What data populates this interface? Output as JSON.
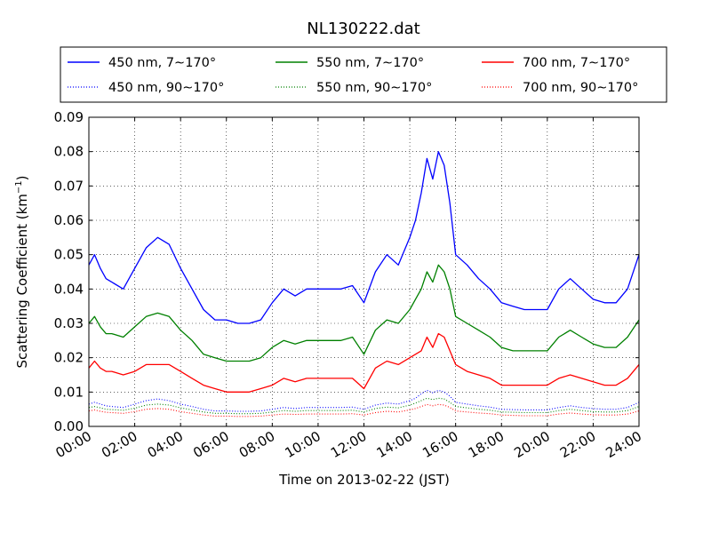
{
  "chart_data": {
    "type": "line",
    "title": "NL130222.dat",
    "xlabel": "Time on 2013-02-22 (JST)",
    "ylabel": "Scattering Coefficient (km",
    "ylabel_superscript": "−1",
    "ylabel_suffix": ")",
    "xlim": [
      "00:00",
      "24:00"
    ],
    "ylim": [
      0.0,
      0.09
    ],
    "grid": true,
    "legend_position": "top",
    "x_ticks": [
      "00:00",
      "02:00",
      "04:00",
      "06:00",
      "08:00",
      "10:00",
      "12:00",
      "14:00",
      "16:00",
      "18:00",
      "20:00",
      "22:00",
      "24:00"
    ],
    "y_ticks": [
      "0.00",
      "0.01",
      "0.02",
      "0.03",
      "0.04",
      "0.05",
      "0.06",
      "0.07",
      "0.08",
      "0.09"
    ],
    "x_hours": [
      0,
      0.25,
      0.5,
      0.75,
      1.0,
      1.5,
      2.0,
      2.5,
      3.0,
      3.5,
      4.0,
      4.5,
      5.0,
      5.5,
      6.0,
      6.5,
      7.0,
      7.5,
      8.0,
      8.5,
      9.0,
      9.5,
      10.0,
      10.5,
      11.0,
      11.5,
      12.0,
      12.5,
      13.0,
      13.5,
      14.0,
      14.25,
      14.5,
      14.75,
      15.0,
      15.25,
      15.5,
      15.75,
      16.0,
      16.5,
      17.0,
      17.5,
      18.0,
      18.5,
      19.0,
      19.5,
      20.0,
      20.5,
      21.0,
      21.5,
      22.0,
      22.5,
      23.0,
      23.5,
      24.0
    ],
    "series": [
      {
        "name": "450 nm, 7∼170°",
        "color": "#0000ff",
        "style": "solid",
        "values": [
          0.047,
          0.05,
          0.046,
          0.043,
          0.042,
          0.04,
          0.046,
          0.052,
          0.055,
          0.053,
          0.046,
          0.04,
          0.034,
          0.031,
          0.031,
          0.03,
          0.03,
          0.031,
          0.036,
          0.04,
          0.038,
          0.04,
          0.04,
          0.04,
          0.04,
          0.041,
          0.036,
          0.045,
          0.05,
          0.047,
          0.055,
          0.06,
          0.068,
          0.078,
          0.072,
          0.08,
          0.076,
          0.065,
          0.05,
          0.047,
          0.043,
          0.04,
          0.036,
          0.035,
          0.034,
          0.034,
          0.034,
          0.04,
          0.043,
          0.04,
          0.037,
          0.036,
          0.036,
          0.04,
          0.05
        ]
      },
      {
        "name": "450 nm, 90∼170°",
        "color": "#0000ff",
        "style": "dotted",
        "values": [
          0.0065,
          0.007,
          0.0065,
          0.006,
          0.0058,
          0.0055,
          0.0065,
          0.0075,
          0.008,
          0.0075,
          0.0065,
          0.0058,
          0.005,
          0.0045,
          0.0045,
          0.0044,
          0.0044,
          0.0045,
          0.005,
          0.0055,
          0.0052,
          0.0055,
          0.0055,
          0.0055,
          0.0055,
          0.0056,
          0.005,
          0.0062,
          0.0068,
          0.0065,
          0.0075,
          0.0082,
          0.0095,
          0.0105,
          0.0098,
          0.0105,
          0.01,
          0.0088,
          0.007,
          0.0065,
          0.006,
          0.0056,
          0.005,
          0.0049,
          0.0048,
          0.0048,
          0.0048,
          0.0055,
          0.006,
          0.0055,
          0.0052,
          0.005,
          0.005,
          0.0055,
          0.007
        ]
      },
      {
        "name": "550 nm, 7∼170°",
        "color": "#008000",
        "style": "solid",
        "values": [
          0.03,
          0.032,
          0.029,
          0.027,
          0.027,
          0.026,
          0.029,
          0.032,
          0.033,
          0.032,
          0.028,
          0.025,
          0.021,
          0.02,
          0.019,
          0.019,
          0.019,
          0.02,
          0.023,
          0.025,
          0.024,
          0.025,
          0.025,
          0.025,
          0.025,
          0.026,
          0.021,
          0.028,
          0.031,
          0.03,
          0.034,
          0.037,
          0.04,
          0.045,
          0.042,
          0.047,
          0.045,
          0.04,
          0.032,
          0.03,
          0.028,
          0.026,
          0.023,
          0.022,
          0.022,
          0.022,
          0.022,
          0.026,
          0.028,
          0.026,
          0.024,
          0.023,
          0.023,
          0.026,
          0.031
        ]
      },
      {
        "name": "550 nm, 90∼170°",
        "color": "#008000",
        "style": "dotted",
        "values": [
          0.0055,
          0.0058,
          0.0054,
          0.005,
          0.0049,
          0.0047,
          0.0053,
          0.0062,
          0.0065,
          0.0062,
          0.0054,
          0.0048,
          0.0042,
          0.0038,
          0.0038,
          0.0037,
          0.0037,
          0.0038,
          0.0042,
          0.0046,
          0.0044,
          0.0046,
          0.0046,
          0.0046,
          0.0046,
          0.0047,
          0.0042,
          0.0052,
          0.0056,
          0.0054,
          0.0062,
          0.0068,
          0.0075,
          0.0082,
          0.0078,
          0.0082,
          0.008,
          0.007,
          0.0058,
          0.0054,
          0.005,
          0.0047,
          0.0042,
          0.0041,
          0.004,
          0.004,
          0.004,
          0.0046,
          0.005,
          0.0046,
          0.0043,
          0.0042,
          0.0042,
          0.0046,
          0.0058
        ]
      },
      {
        "name": "700 nm, 7∼170°",
        "color": "#ff0000",
        "style": "solid",
        "values": [
          0.017,
          0.019,
          0.017,
          0.016,
          0.016,
          0.015,
          0.016,
          0.018,
          0.018,
          0.018,
          0.016,
          0.014,
          0.012,
          0.011,
          0.01,
          0.01,
          0.01,
          0.011,
          0.012,
          0.014,
          0.013,
          0.014,
          0.014,
          0.014,
          0.014,
          0.014,
          0.011,
          0.017,
          0.019,
          0.018,
          0.02,
          0.021,
          0.022,
          0.026,
          0.023,
          0.027,
          0.026,
          0.022,
          0.018,
          0.016,
          0.015,
          0.014,
          0.012,
          0.012,
          0.012,
          0.012,
          0.012,
          0.014,
          0.015,
          0.014,
          0.013,
          0.012,
          0.012,
          0.014,
          0.018
        ]
      },
      {
        "name": "700 nm, 90∼170°",
        "color": "#ff0000",
        "style": "dotted",
        "values": [
          0.0045,
          0.0048,
          0.0044,
          0.0041,
          0.004,
          0.0038,
          0.0043,
          0.005,
          0.0052,
          0.005,
          0.0043,
          0.0038,
          0.0033,
          0.003,
          0.003,
          0.0029,
          0.0029,
          0.003,
          0.0033,
          0.0036,
          0.0035,
          0.0036,
          0.0036,
          0.0036,
          0.0036,
          0.0037,
          0.0033,
          0.004,
          0.0044,
          0.0042,
          0.0048,
          0.0052,
          0.0058,
          0.0064,
          0.006,
          0.0064,
          0.0062,
          0.0055,
          0.0045,
          0.0042,
          0.0039,
          0.0037,
          0.0033,
          0.0032,
          0.0031,
          0.0031,
          0.0031,
          0.0036,
          0.0039,
          0.0036,
          0.0034,
          0.0033,
          0.0033,
          0.0036,
          0.0045
        ]
      }
    ]
  }
}
